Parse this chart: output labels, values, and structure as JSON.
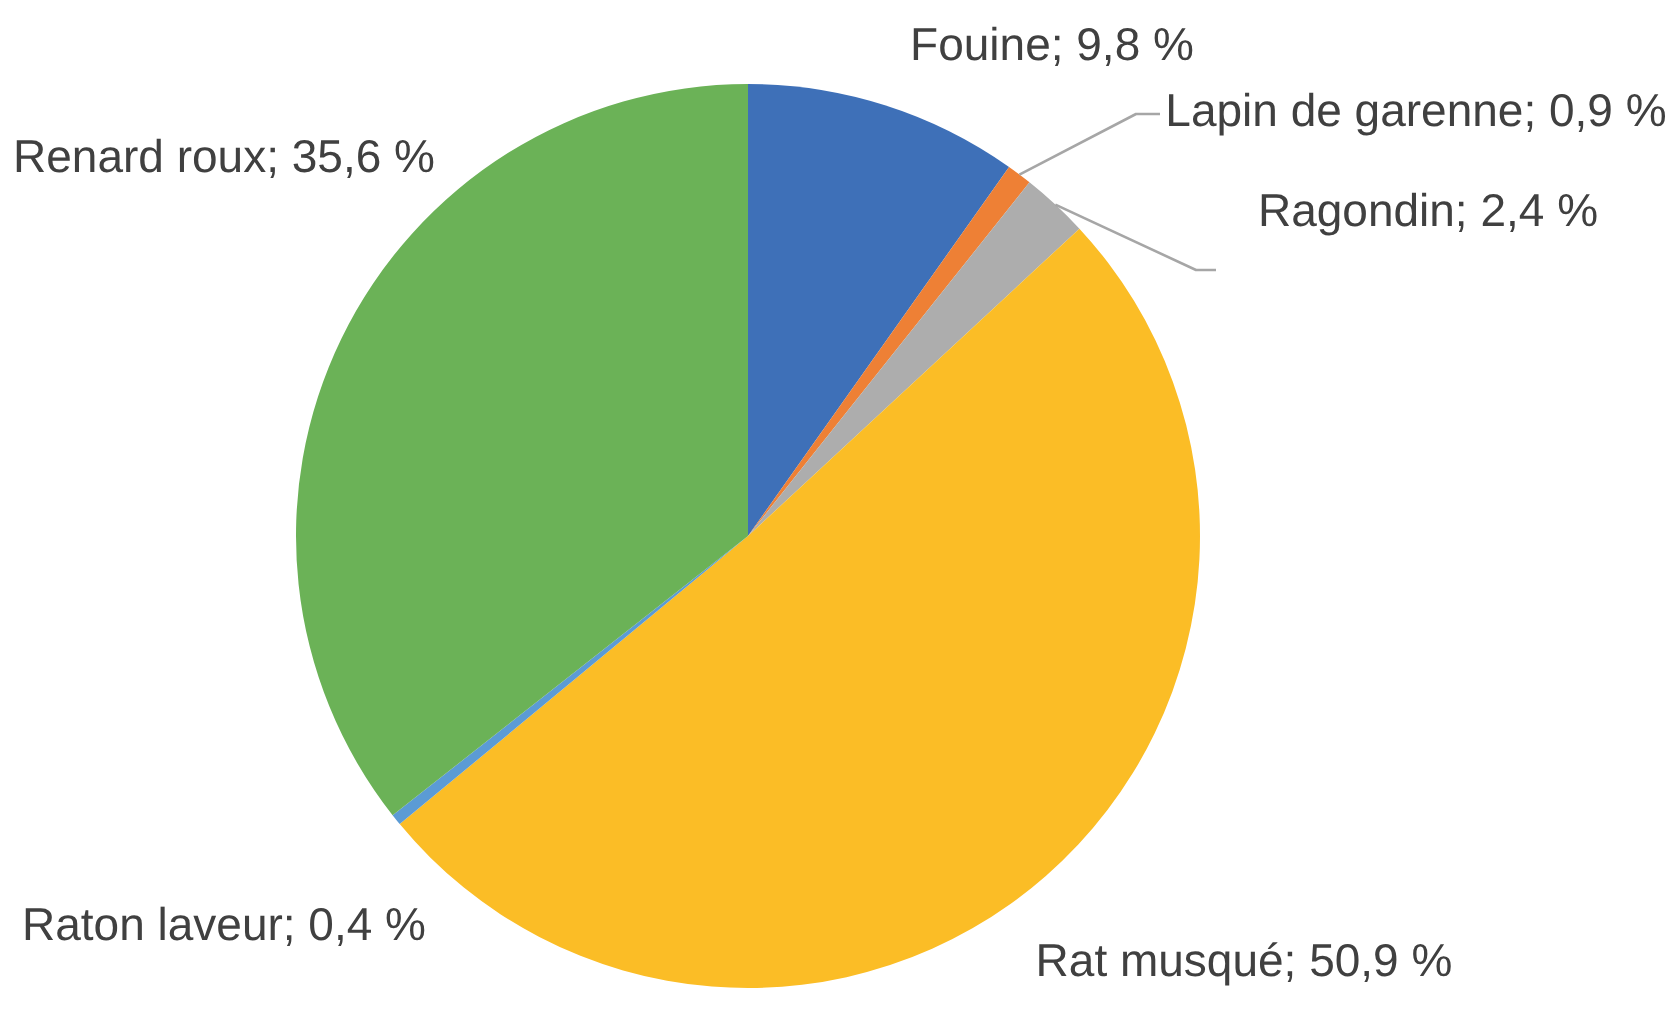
{
  "chart_data": {
    "type": "pie",
    "categories": [
      "Fouine",
      "Lapin de garenne",
      "Ragondin",
      "Rat musqué",
      "Raton laveur",
      "Renard roux"
    ],
    "values": [
      9.8,
      0.9,
      2.4,
      50.9,
      0.4,
      35.6
    ],
    "colors": [
      "#3e70b8",
      "#ee8035",
      "#adadad",
      "#fbbd26",
      "#5b9bd5",
      "#6bb257"
    ],
    "value_labels": [
      "9,8 %",
      "0,9 %",
      "2,4 %",
      "50,9 %",
      "0,4 %",
      "35,6 %"
    ]
  }
}
